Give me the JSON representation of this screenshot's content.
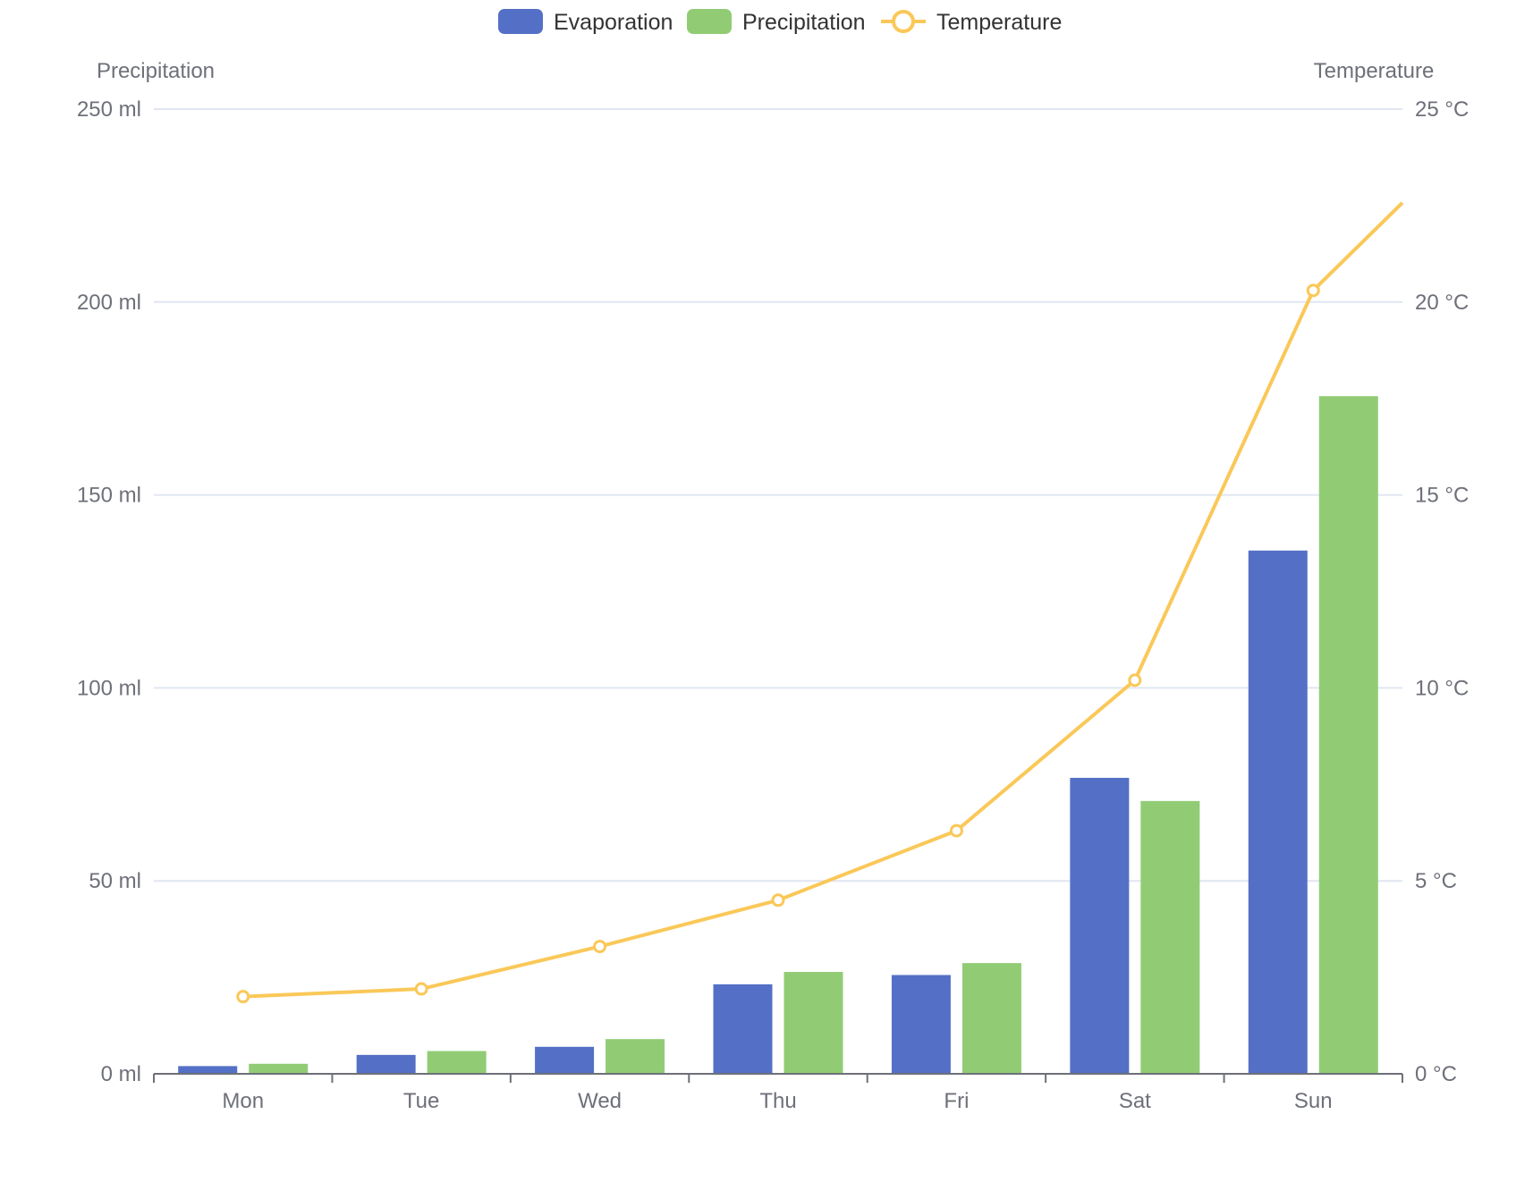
{
  "legend": [
    {
      "key": "evaporation",
      "label": "Evaporation",
      "kind": "bar",
      "color": "#5470c6"
    },
    {
      "key": "precipitation",
      "label": "Precipitation",
      "kind": "bar",
      "color": "#91cc75"
    },
    {
      "key": "temperature",
      "label": "Temperature",
      "kind": "line",
      "color": "#fac858"
    }
  ],
  "chart_data": {
    "type": "bar",
    "legend_position": "top-center",
    "grid": true,
    "categories": [
      "Mon",
      "Tue",
      "Wed",
      "Thu",
      "Fri",
      "Sat",
      "Sun"
    ],
    "y_left": {
      "label": "Precipitation",
      "min": 0,
      "max": 250,
      "interval": 50,
      "unit": "ml",
      "tick_labels": [
        "0 ml",
        "50 ml",
        "100 ml",
        "150 ml",
        "200 ml",
        "250 ml"
      ]
    },
    "y_right": {
      "label": "Temperature",
      "min": 0,
      "max": 25,
      "interval": 5,
      "unit": "°C",
      "tick_labels": [
        "0 °C",
        "5 °C",
        "10 °C",
        "15 °C",
        "20 °C",
        "25 °C"
      ]
    },
    "series": [
      {
        "name": "Evaporation",
        "type": "bar",
        "axis": "left",
        "color": "#5470c6",
        "values": [
          2.0,
          4.9,
          7.0,
          23.2,
          25.6,
          76.7,
          135.6
        ]
      },
      {
        "name": "Precipitation",
        "type": "bar",
        "axis": "left",
        "color": "#91cc75",
        "values": [
          2.6,
          5.9,
          9.0,
          26.4,
          28.7,
          70.7,
          175.6
        ]
      },
      {
        "name": "Temperature",
        "type": "line",
        "axis": "right",
        "color": "#fac858",
        "values": [
          2.0,
          2.2,
          3.3,
          4.5,
          6.3,
          10.2,
          20.3
        ]
      }
    ]
  }
}
